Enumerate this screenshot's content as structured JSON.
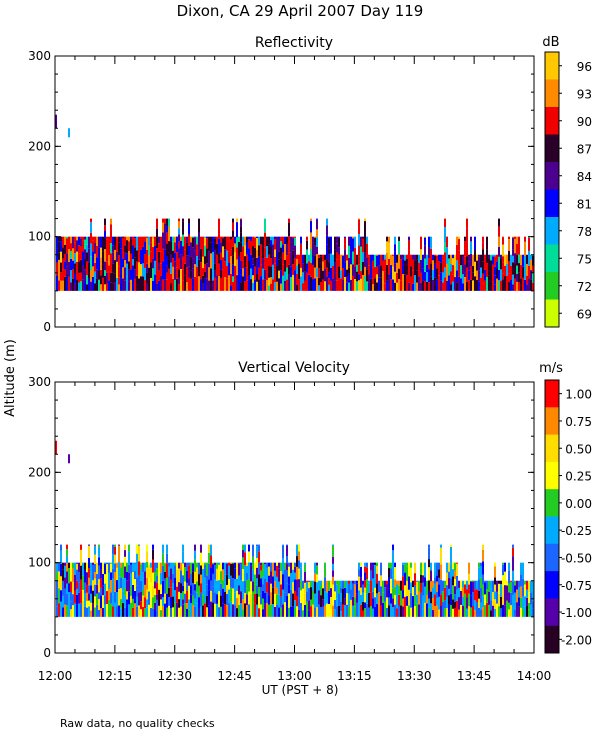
{
  "title": "Dixon, CA 29 April 2007  Day 119",
  "ylabel": "Altitude  (m)",
  "xlabel": "UT   (PST + 8)",
  "footnote": "Raw data, no quality checks",
  "x_ticks": [
    "12:00",
    "12:15",
    "12:30",
    "12:45",
    "13:00",
    "13:15",
    "13:30",
    "13:45",
    "14:00"
  ],
  "chart_data": [
    {
      "type": "heatmap",
      "title": "Reflectivity",
      "x_range": [
        "12:00",
        "14:00"
      ],
      "ylim": [
        0,
        300
      ],
      "yticks": [
        0,
        100,
        200,
        300
      ],
      "colorbar": {
        "unit": "dB",
        "labels": [
          "96",
          "93",
          "90",
          "87",
          "84",
          "81",
          "78",
          "75",
          "72",
          "69"
        ],
        "colors": [
          "#ffc800",
          "#ff8a00",
          "#f00000",
          "#2a0028",
          "#4b0090",
          "#0000ff",
          "#00aaff",
          "#00dd99",
          "#22cc22",
          "#ccff00"
        ]
      },
      "data_summary": {
        "main_echo_altitude_m": [
          40,
          100
        ],
        "sparse_echo_tops_m": 120,
        "isolated_echoes_m": [
          220,
          210
        ]
      }
    },
    {
      "type": "heatmap",
      "title": "Vertical Velocity",
      "x_range": [
        "12:00",
        "14:00"
      ],
      "ylim": [
        0,
        300
      ],
      "yticks": [
        0,
        100,
        200,
        300
      ],
      "colorbar": {
        "unit": "m/s",
        "labels": [
          "1.00",
          "0.75",
          "0.50",
          "0.25",
          "0.00",
          "-0.25",
          "-0.50",
          "-0.75",
          "-1.00",
          "-2.00"
        ],
        "colors": [
          "#ff0000",
          "#ff8800",
          "#ffdd00",
          "#ffff00",
          "#22cc22",
          "#00aaff",
          "#1a66ff",
          "#0000ff",
          "#5500aa",
          "#280024"
        ]
      },
      "data_summary": {
        "main_echo_altitude_m": [
          40,
          100
        ],
        "sparse_echo_tops_m": 120,
        "isolated_echoes_m": [
          220,
          210
        ]
      }
    }
  ]
}
